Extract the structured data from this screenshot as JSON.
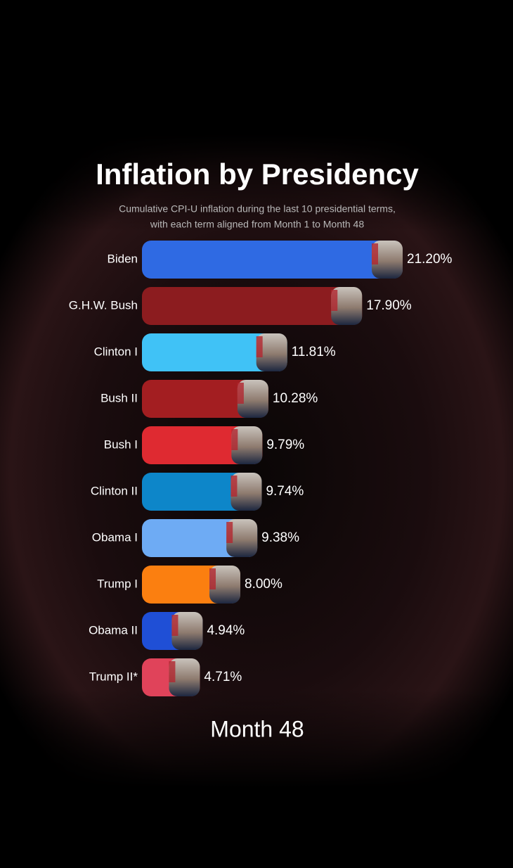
{
  "chart_data": {
    "type": "bar",
    "orientation": "horizontal",
    "title": "Inflation by Presidency",
    "subtitle": [
      "Cumulative CPI-U inflation during the last 10 presidential terms,",
      "with each term aligned from Month 1 to Month 48"
    ],
    "categories": [
      "Biden",
      "G.H.W. Bush",
      "Clinton I",
      "Bush II",
      "Bush I",
      "Clinton II",
      "Obama I",
      "Trump I",
      "Obama II",
      "Trump II*"
    ],
    "values": [
      21.2,
      17.9,
      11.81,
      10.28,
      9.79,
      9.74,
      9.38,
      8.0,
      4.94,
      4.71
    ],
    "value_labels": [
      "21.20%",
      "17.90%",
      "11.81%",
      "10.28%",
      "9.79%",
      "9.74%",
      "9.38%",
      "8.00%",
      "4.94%",
      "4.71%"
    ],
    "colors": [
      "#2f6ae3",
      "#8c1c1f",
      "#40c2f6",
      "#a31e21",
      "#df2a31",
      "#0d86c9",
      "#6eabf4",
      "#fb7f10",
      "#1f4fd6",
      "#e0435a"
    ],
    "footer": "Month 48"
  }
}
